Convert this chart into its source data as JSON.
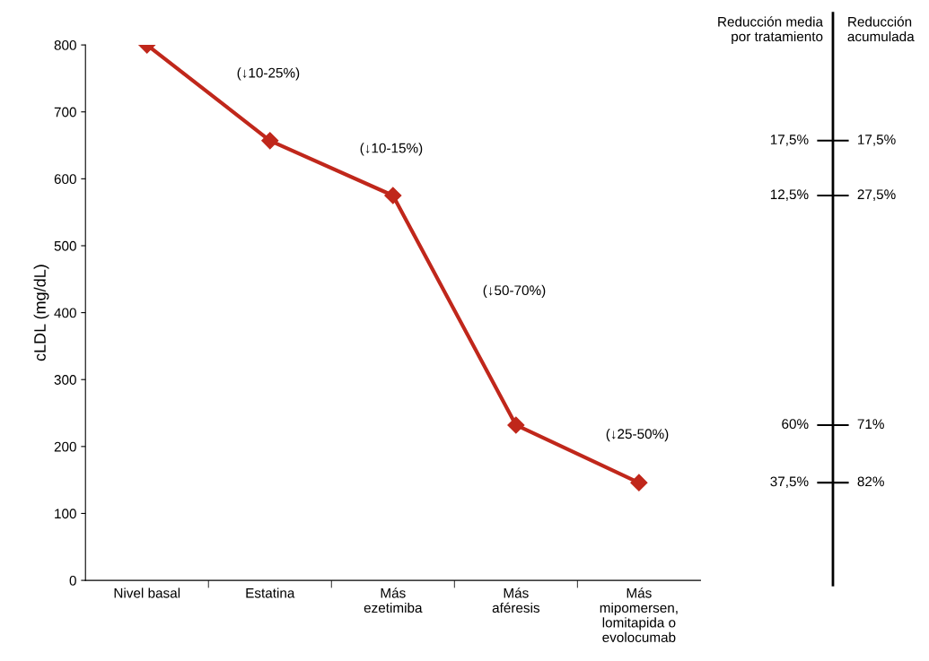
{
  "chart_data": [
    {
      "type": "line",
      "ylabel": "cLDL (mg/dL)",
      "categories": [
        "Nivel basal",
        "Estatina",
        "Más\nezetimiba",
        "Más\naféresis",
        "Más\nmipomersen,\nlomitapida o\nevolocumab"
      ],
      "series": [
        {
          "color": "#c0271b",
          "values": [
            800,
            657,
            575,
            232,
            146
          ]
        }
      ],
      "ylim": [
        0,
        800
      ],
      "yticks": [
        0,
        100,
        200,
        300,
        400,
        500,
        600,
        700,
        800
      ],
      "marker": "diamond",
      "line_style": "solid",
      "grid": false,
      "legend": false,
      "annotations": [
        "(↓10-25%)",
        "(↓10-15%)",
        "(↓50-70%)",
        "(↓25-50%)"
      ]
    },
    {
      "type": "other",
      "ylabel": "Reducción media\npor tratamiento",
      "y2label": "Reducción\nacumulada",
      "annotations": [
        "17,5%",
        "17,5%",
        "12,5%",
        "27,5%",
        "60%",
        "71%",
        "37,5%",
        "82%"
      ]
    }
  ]
}
